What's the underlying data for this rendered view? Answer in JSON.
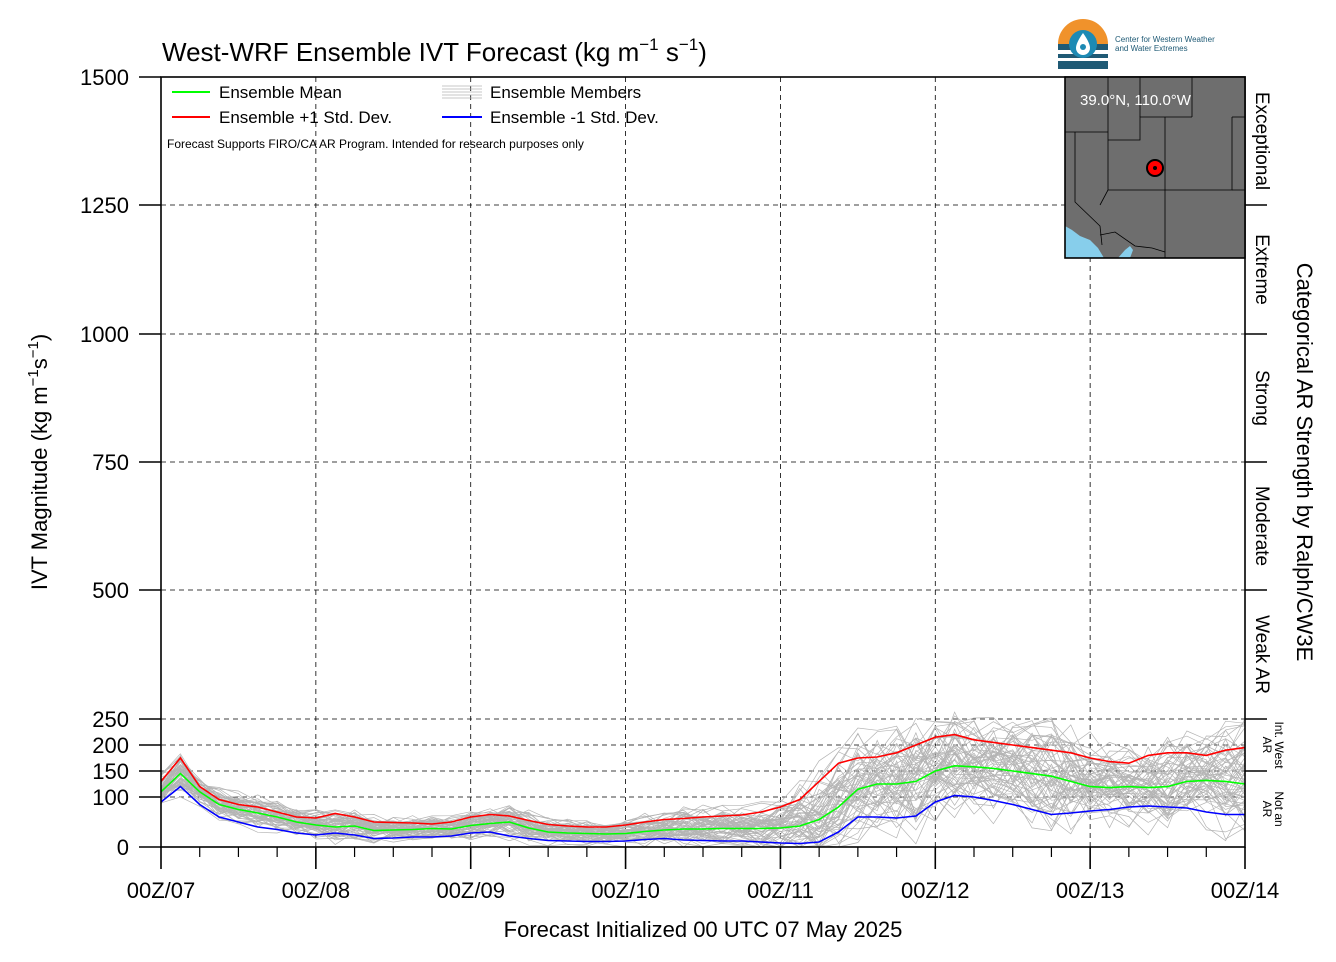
{
  "header": {
    "title_main": "West-WRF Ensemble IVT Forecast (kg m",
    "title_exp1": "−1",
    "title_mid": " s",
    "title_exp2": "−1",
    "title_end": ")"
  },
  "logo": {
    "line1": "Center for Western Weather",
    "line2": "and Water Extremes",
    "colors": {
      "orange": "#f0922b",
      "blue": "#1d8ab4",
      "dark": "#1f5a75"
    }
  },
  "legend": {
    "mean": "Ensemble Mean",
    "plus": "Ensemble +1 Std. Dev.",
    "members": "Ensemble Members",
    "minus": "Ensemble -1 Std. Dev.",
    "note": "Forecast Supports FIRO/CA AR Program. Intended for research purposes only",
    "colors": {
      "mean": "#00ff00",
      "plus": "#ff0000",
      "minus": "#0000ff",
      "members": "#b4b4b4"
    }
  },
  "inset": {
    "label": "39.0°N, 110.0°W",
    "marker_color": "#ff0000",
    "land_color": "#6e6e6e",
    "water_color": "#87ceeb"
  },
  "axes": {
    "ylabel_main": "IVT Magnitude (kg m",
    "ylabel_exp1": "−1",
    "ylabel_mid": "s",
    "ylabel_exp2": "−1",
    "ylabel_end": ")",
    "xlabel": "Forecast Initialized 00 UTC 07 May 2025",
    "right_label": "Categorical AR Strength by Ralph/CW3E"
  },
  "chart_data": {
    "type": "line",
    "x_tick_labels": [
      "00Z/07",
      "00Z/08",
      "00Z/09",
      "00Z/10",
      "00Z/11",
      "00Z/12",
      "00Z/13",
      "00Z/14"
    ],
    "x_unit": "hours since 00Z/07",
    "xlim": [
      0,
      168
    ],
    "y_ticks": [
      0,
      100,
      150,
      200,
      250,
      500,
      750,
      1000,
      1250,
      1500
    ],
    "ylim": [
      0,
      1500
    ],
    "grid": true,
    "legend_placement": "top-left",
    "categories_right": [
      {
        "label": "Exceptional",
        "from": 1250,
        "to": 1500
      },
      {
        "label": "Extreme",
        "from": 1000,
        "to": 1250
      },
      {
        "label": "Strong",
        "from": 750,
        "to": 1000
      },
      {
        "label": "Moderate",
        "from": 500,
        "to": 750
      },
      {
        "label": "Weak AR",
        "from": 250,
        "to": 500
      },
      {
        "label": "Int. West AR",
        "from": 150,
        "to": 250
      },
      {
        "label": "Not an AR",
        "from": 0,
        "to": 150
      }
    ],
    "series": [
      {
        "name": "Ensemble Mean",
        "color": "#00ff00",
        "x": [
          0,
          3,
          6,
          9,
          12,
          15,
          18,
          21,
          24,
          27,
          30,
          33,
          36,
          39,
          42,
          45,
          48,
          51,
          54,
          57,
          60,
          63,
          66,
          69,
          72,
          75,
          78,
          81,
          84,
          87,
          90,
          93,
          96,
          99,
          102,
          105,
          108,
          111,
          114,
          117,
          120,
          123,
          126,
          129,
          132,
          135,
          138,
          141,
          144,
          147,
          150,
          153,
          156,
          159,
          162,
          165,
          168
        ],
        "values": [
          110,
          145,
          110,
          85,
          75,
          68,
          60,
          50,
          44,
          40,
          42,
          33,
          34,
          35,
          37,
          36,
          43,
          47,
          50,
          38,
          30,
          28,
          27,
          26,
          27,
          31,
          34,
          36,
          36,
          37,
          37,
          37,
          38,
          42,
          55,
          80,
          115,
          125,
          125,
          130,
          150,
          160,
          158,
          155,
          150,
          145,
          140,
          130,
          120,
          118,
          120,
          118,
          120,
          130,
          132,
          130,
          125
        ]
      },
      {
        "name": "Ensemble +1 Std. Dev.",
        "color": "#ff0000",
        "x": [
          0,
          3,
          6,
          9,
          12,
          15,
          18,
          21,
          24,
          27,
          30,
          33,
          36,
          39,
          42,
          45,
          48,
          51,
          54,
          57,
          60,
          63,
          66,
          69,
          72,
          75,
          78,
          81,
          84,
          87,
          90,
          93,
          96,
          99,
          102,
          105,
          108,
          111,
          114,
          117,
          120,
          123,
          126,
          129,
          132,
          135,
          138,
          141,
          144,
          147,
          150,
          153,
          156,
          159,
          162,
          165,
          168
        ],
        "values": [
          130,
          175,
          120,
          95,
          85,
          80,
          70,
          60,
          58,
          67,
          60,
          50,
          49,
          48,
          46,
          50,
          60,
          65,
          62,
          53,
          45,
          42,
          40,
          40,
          44,
          50,
          55,
          57,
          60,
          62,
          64,
          70,
          80,
          95,
          130,
          165,
          175,
          177,
          185,
          200,
          215,
          220,
          210,
          205,
          200,
          195,
          190,
          185,
          175,
          168,
          165,
          180,
          185,
          185,
          180,
          190,
          195
        ]
      },
      {
        "name": "Ensemble -1 Std. Dev.",
        "color": "#0000ff",
        "x": [
          0,
          3,
          6,
          9,
          12,
          15,
          18,
          21,
          24,
          27,
          30,
          33,
          36,
          39,
          42,
          45,
          48,
          51,
          54,
          57,
          60,
          63,
          66,
          69,
          72,
          75,
          78,
          81,
          84,
          87,
          90,
          93,
          96,
          99,
          102,
          105,
          108,
          111,
          114,
          117,
          120,
          123,
          126,
          129,
          132,
          135,
          138,
          141,
          144,
          147,
          150,
          153,
          156,
          159,
          162,
          165,
          168
        ],
        "values": [
          90,
          120,
          85,
          60,
          50,
          40,
          35,
          28,
          24,
          28,
          24,
          17,
          18,
          20,
          20,
          22,
          28,
          30,
          22,
          17,
          13,
          12,
          11,
          11,
          12,
          15,
          17,
          14,
          13,
          12,
          12,
          10,
          8,
          7,
          10,
          30,
          60,
          60,
          58,
          62,
          90,
          103,
          100,
          93,
          85,
          75,
          65,
          68,
          72,
          75,
          80,
          82,
          80,
          78,
          70,
          65,
          65
        ]
      }
    ]
  }
}
